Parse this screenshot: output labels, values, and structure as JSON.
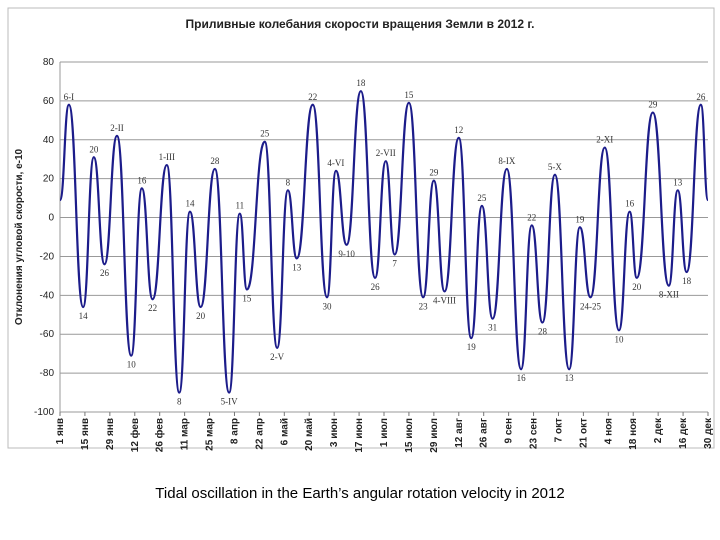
{
  "chart_data": {
    "type": "line",
    "title": "Приливные колебания скорости вращения Земли в 2012 г.",
    "y_label": "Отклонения угловой скорости, е-10",
    "caption": "Tidal oscillation in the Earth’s angular rotation velocity in 2012",
    "xlim": [
      0,
      364
    ],
    "xticks": [
      {
        "value": 0,
        "label": "1 янв"
      },
      {
        "value": 14,
        "label": "15 янв"
      },
      {
        "value": 28,
        "label": "29 янв"
      },
      {
        "value": 42,
        "label": "12 фев"
      },
      {
        "value": 56,
        "label": "26 фев"
      },
      {
        "value": 70,
        "label": "11 мар"
      },
      {
        "value": 84,
        "label": "25 мар"
      },
      {
        "value": 98,
        "label": "8 апр"
      },
      {
        "value": 112,
        "label": "22 апр"
      },
      {
        "value": 126,
        "label": "6 май"
      },
      {
        "value": 140,
        "label": "20 май"
      },
      {
        "value": 154,
        "label": "3 июн"
      },
      {
        "value": 168,
        "label": "17 июн"
      },
      {
        "value": 182,
        "label": "1 июл"
      },
      {
        "value": 196,
        "label": "15 июл"
      },
      {
        "value": 210,
        "label": "29 июл"
      },
      {
        "value": 224,
        "label": "12 авг"
      },
      {
        "value": 238,
        "label": "26 авг"
      },
      {
        "value": 252,
        "label": "9 сен"
      },
      {
        "value": 266,
        "label": "23 сен"
      },
      {
        "value": 280,
        "label": "7 окт"
      },
      {
        "value": 294,
        "label": "21 окт"
      },
      {
        "value": 308,
        "label": "4 ноя"
      },
      {
        "value": 322,
        "label": "18 ноя"
      },
      {
        "value": 336,
        "label": "2 дек"
      },
      {
        "value": 350,
        "label": "16 дек"
      },
      {
        "value": 364,
        "label": "30 дек"
      }
    ],
    "ylim": [
      -100,
      80
    ],
    "yticks": [
      -100,
      -80,
      -60,
      -40,
      -20,
      0,
      20,
      40,
      60,
      80
    ],
    "grid": true,
    "x": [
      0,
      5,
      13,
      19,
      25,
      32,
      40,
      46,
      52,
      60,
      67,
      73,
      79,
      87,
      95,
      101,
      105,
      115,
      122,
      128,
      133,
      142,
      150,
      155,
      161,
      169,
      177,
      183,
      188,
      196,
      204,
      210,
      216,
      224,
      231,
      237,
      243,
      251,
      259,
      265,
      271,
      278,
      286,
      292,
      298,
      306,
      314,
      320,
      324,
      333,
      342,
      347,
      352,
      360,
      364
    ],
    "series": [
      {
        "color": "#1c1c8a",
        "values": [
          9,
          58,
          -46,
          31,
          -24,
          42,
          -71,
          15,
          -42,
          27,
          -90,
          3,
          -46,
          25,
          -90,
          2,
          -37,
          39,
          -67,
          14,
          -21,
          58,
          -41,
          24,
          -14,
          65,
          -31,
          29,
          -19,
          59,
          -41,
          19,
          -38,
          41,
          -62,
          6,
          -52,
          25,
          -78,
          -4,
          -54,
          22,
          -78,
          -5,
          -41,
          36,
          -58,
          3,
          -31,
          54,
          -35,
          14,
          -28,
          58,
          9
        ],
        "point_labels": [
          null,
          "6-I",
          "14",
          "20",
          "26",
          "2-II",
          "10",
          "16",
          "22",
          "1-III",
          "8",
          "14",
          "20",
          "28",
          "5-IV",
          "11",
          "15",
          "25",
          "2-V",
          "8",
          "13",
          "22",
          "30",
          "4-VI",
          "9-10",
          "18",
          "26",
          "2-VII",
          "7",
          "15",
          "23",
          "29",
          "4-VIII",
          "12",
          "19",
          "25",
          "31",
          "8-IX",
          "16",
          "22",
          "28",
          "5-X",
          "13",
          "19",
          "24-25",
          "2-XI",
          "10",
          "16",
          "20",
          "29",
          "8-XII",
          "13",
          "18",
          "26",
          null
        ]
      }
    ]
  }
}
